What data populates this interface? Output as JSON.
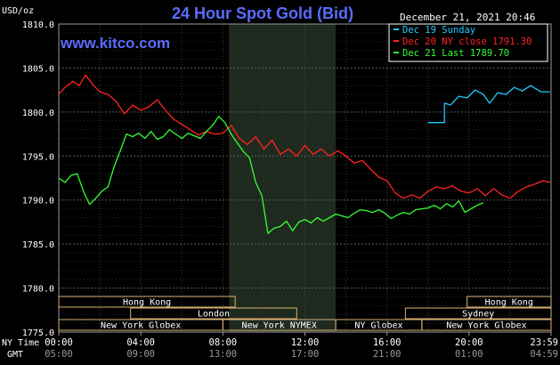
{
  "header": {
    "units": "USD/oz",
    "title": "24 Hour Spot Gold (Bid)",
    "timestamp": "December 21, 2021 20:46",
    "watermark": "www.kitco.com"
  },
  "legend": [
    {
      "label": "Dec 19 Sunday",
      "color": "#22c8ff"
    },
    {
      "label": "Dec 20 NY close 1791.30",
      "color": "#ff2222"
    },
    {
      "label": "Dec 21 Last 1789.70",
      "color": "#33ff33"
    }
  ],
  "markets": [
    {
      "label": "Hong Kong",
      "row": 0,
      "start": 0,
      "end": 8.6
    },
    {
      "label": "Hong Kong",
      "row": 0,
      "start": 19.9,
      "end": 24
    },
    {
      "label": "London",
      "row": 1,
      "start": 3.5,
      "end": 11.6
    },
    {
      "label": "Sydney",
      "row": 1,
      "start": 16.9,
      "end": 24
    },
    {
      "label": "New York Globex",
      "row": 2,
      "start": 0,
      "end": 8.0
    },
    {
      "label": "New York NYMEX",
      "row": 2,
      "start": 8.0,
      "end": 13.5
    },
    {
      "label": "NY Globex",
      "row": 2,
      "start": 13.5,
      "end": 17.7
    },
    {
      "label": "New York Globex",
      "row": 2,
      "start": 17.7,
      "end": 24
    }
  ],
  "axis_labels": {
    "ny_time": "NY Time",
    "gmt": "GMT"
  },
  "x_ticks_ny": [
    "00:00",
    "04:00",
    "08:00",
    "12:00",
    "16:00",
    "20:00",
    "23:59"
  ],
  "x_ticks_gmt": [
    "05:00",
    "09:00",
    "13:00",
    "17:00",
    "21:00",
    "01:00",
    "04:59"
  ],
  "y_ticks": [
    "1810.0",
    "1805.0",
    "1800.0",
    "1795.0",
    "1790.0",
    "1785.0",
    "1780.0",
    "1775.0"
  ],
  "chart_data": {
    "type": "line",
    "title": "24 Hour Spot Gold (Bid)",
    "ylabel": "USD/oz",
    "xlabel": "NY Time",
    "xlim": [
      0,
      24
    ],
    "ylim": [
      1775,
      1810
    ],
    "grid": true,
    "legend_position": "top-right",
    "highlight_hours": [
      8.3,
      13.5
    ],
    "series": [
      {
        "name": "Dec 19 Sunday",
        "color": "#22c8ff",
        "x": [
          18.0,
          18.8,
          18.8,
          19.1,
          19.5,
          19.9,
          20.3,
          20.7,
          21.0,
          21.4,
          21.8,
          22.2,
          22.6,
          23.0,
          23.5,
          23.95
        ],
        "y": [
          1798.8,
          1798.8,
          1801.0,
          1800.8,
          1801.8,
          1801.6,
          1802.5,
          1802.0,
          1801.0,
          1802.2,
          1802.0,
          1802.8,
          1802.4,
          1803.0,
          1802.3,
          1802.3
        ]
      },
      {
        "name": "Dec 20 NY close 1791.30",
        "color": "#ff2222",
        "x": [
          0,
          0.3,
          0.7,
          1.0,
          1.3,
          1.7,
          2.0,
          2.4,
          2.8,
          3.2,
          3.6,
          4.0,
          4.4,
          4.8,
          5.2,
          5.6,
          6.0,
          6.4,
          6.8,
          7.2,
          7.6,
          8.0,
          8.4,
          8.8,
          9.2,
          9.6,
          10.0,
          10.4,
          10.8,
          11.2,
          11.6,
          12.0,
          12.4,
          12.8,
          13.2,
          13.6,
          14.0,
          14.4,
          14.8,
          15.2,
          15.6,
          16.0,
          16.4,
          16.8,
          17.2,
          17.6,
          18.0,
          18.4,
          18.8,
          19.2,
          19.6,
          20.0,
          20.4,
          20.8,
          21.2,
          21.6,
          22.0,
          22.4,
          22.8,
          23.2,
          23.6,
          23.95
        ],
        "y": [
          1802.0,
          1802.8,
          1803.5,
          1803.0,
          1804.2,
          1803.0,
          1802.3,
          1802.0,
          1801.2,
          1799.8,
          1800.8,
          1800.2,
          1800.6,
          1801.4,
          1800.2,
          1799.2,
          1798.6,
          1798.0,
          1797.4,
          1797.8,
          1797.5,
          1797.6,
          1798.5,
          1797.0,
          1796.3,
          1797.2,
          1795.8,
          1796.8,
          1795.2,
          1795.8,
          1795.0,
          1796.2,
          1795.2,
          1795.8,
          1795.0,
          1795.6,
          1795.0,
          1794.2,
          1794.5,
          1793.5,
          1792.6,
          1792.2,
          1790.8,
          1790.2,
          1790.6,
          1790.2,
          1791.0,
          1791.5,
          1791.3,
          1791.6,
          1791.0,
          1790.8,
          1791.3,
          1790.5,
          1791.3,
          1790.6,
          1790.2,
          1791.0,
          1791.5,
          1791.8,
          1792.2,
          1792.0
        ]
      },
      {
        "name": "Dec 21 Last 1789.70",
        "color": "#33ff33",
        "x": [
          0,
          0.3,
          0.6,
          0.9,
          1.2,
          1.5,
          1.8,
          2.1,
          2.4,
          2.7,
          3.0,
          3.3,
          3.6,
          3.9,
          4.2,
          4.5,
          4.8,
          5.1,
          5.4,
          5.7,
          6.0,
          6.3,
          6.6,
          6.9,
          7.2,
          7.5,
          7.8,
          8.1,
          8.4,
          8.7,
          9.0,
          9.3,
          9.6,
          9.9,
          10.2,
          10.5,
          10.8,
          11.1,
          11.4,
          11.7,
          12.0,
          12.3,
          12.6,
          12.9,
          13.2,
          13.5,
          13.8,
          14.1,
          14.4,
          14.7,
          15.0,
          15.3,
          15.6,
          15.9,
          16.2,
          16.5,
          16.8,
          17.1,
          17.4,
          17.7,
          18.0,
          18.3,
          18.6,
          18.9,
          19.2,
          19.5,
          19.8,
          20.1,
          20.4,
          20.7
        ],
        "y": [
          1792.5,
          1792.0,
          1792.8,
          1793.0,
          1791.0,
          1789.5,
          1790.2,
          1791.0,
          1791.5,
          1793.8,
          1795.6,
          1797.5,
          1797.2,
          1797.6,
          1797.0,
          1797.8,
          1796.9,
          1797.2,
          1798.0,
          1797.5,
          1797.0,
          1797.6,
          1797.3,
          1797.0,
          1797.8,
          1798.5,
          1799.5,
          1798.8,
          1797.5,
          1796.5,
          1795.5,
          1794.8,
          1792.0,
          1790.5,
          1786.2,
          1786.8,
          1787.0,
          1787.6,
          1786.5,
          1787.5,
          1787.8,
          1787.4,
          1788.0,
          1787.6,
          1788.0,
          1788.4,
          1788.2,
          1788.0,
          1788.5,
          1788.9,
          1788.8,
          1788.6,
          1788.9,
          1788.5,
          1787.9,
          1788.3,
          1788.6,
          1788.4,
          1788.9,
          1789.0,
          1789.1,
          1789.4,
          1789.0,
          1789.6,
          1789.2,
          1789.9,
          1788.6,
          1789.0,
          1789.4,
          1789.7
        ]
      }
    ]
  }
}
